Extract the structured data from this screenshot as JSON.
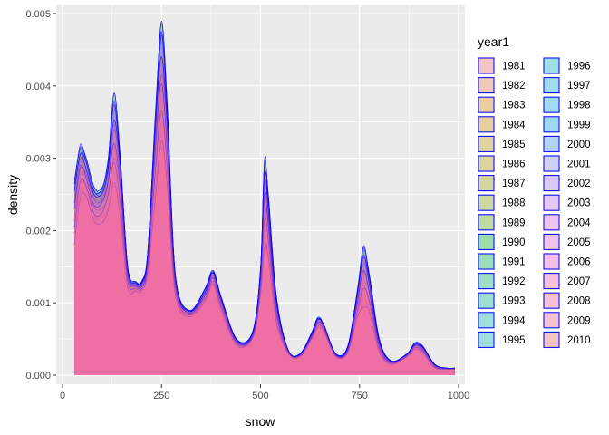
{
  "chart_data": {
    "type": "area",
    "subtype": "overlapping-density",
    "xlabel": "snow",
    "ylabel": "density",
    "xlim": [
      0,
      1000
    ],
    "ylim": [
      0,
      0.005
    ],
    "x_ticks": [
      0,
      250,
      500,
      750,
      1000
    ],
    "x_tick_labels": [
      "0",
      "250",
      "500",
      "750",
      "1000"
    ],
    "y_ticks": [
      0,
      0.001,
      0.002,
      0.003,
      0.004,
      0.005
    ],
    "y_tick_labels": [
      "0.000",
      "0.001",
      "0.002",
      "0.003",
      "0.004",
      "0.005"
    ],
    "grid": true,
    "outline_color": "#0000ff",
    "legend": {
      "title": "year1",
      "placement": "right",
      "columns": 2,
      "entries": [
        "1981",
        "1982",
        "1983",
        "1984",
        "1985",
        "1986",
        "1987",
        "1988",
        "1989",
        "1990",
        "1991",
        "1992",
        "1993",
        "1994",
        "1995",
        "1996",
        "1997",
        "1998",
        "1999",
        "2000",
        "2001",
        "2002",
        "2003",
        "2004",
        "2005",
        "2006",
        "2007",
        "2008",
        "2009",
        "2010"
      ],
      "colors": [
        "#F8766D",
        "#EE8043",
        "#E38900",
        "#D69100",
        "#C59900",
        "#B3A000",
        "#9DA700",
        "#83AD00",
        "#5EB300",
        "#00B81F",
        "#00BB52",
        "#00BE70",
        "#00C08B",
        "#00C1A4",
        "#00BFBC",
        "#00BDD2",
        "#00B8E5",
        "#00B1F3",
        "#00A8FE",
        "#3F9CFF",
        "#8B93FF",
        "#B083FF",
        "#CD79FF",
        "#E36EF6",
        "#F066EA",
        "#FA62D6",
        "#FE61C1",
        "#FF64AA",
        "#FD6A93",
        "#F8766D"
      ]
    },
    "x": [
      30,
      45,
      60,
      80,
      100,
      115,
      130,
      145,
      165,
      185,
      200,
      215,
      235,
      250,
      265,
      285,
      320,
      360,
      380,
      400,
      440,
      480,
      500,
      510,
      520,
      540,
      570,
      600,
      630,
      645,
      660,
      690,
      720,
      745,
      760,
      775,
      800,
      830,
      870,
      890,
      910,
      940,
      970,
      990
    ],
    "envelope_max": [
      0.0027,
      0.0032,
      0.003,
      0.0026,
      0.0026,
      0.003,
      0.0039,
      0.0031,
      0.0015,
      0.0013,
      0.0013,
      0.0017,
      0.0037,
      0.0049,
      0.0037,
      0.0014,
      0.0009,
      0.0012,
      0.00145,
      0.0011,
      0.0005,
      0.0006,
      0.0015,
      0.003,
      0.0025,
      0.0011,
      0.00035,
      0.0003,
      0.0006,
      0.0008,
      0.0007,
      0.0003,
      0.0004,
      0.0012,
      0.0018,
      0.0014,
      0.0005,
      0.0002,
      0.0003,
      0.00045,
      0.0004,
      0.00015,
      0.0001,
      0.0001
    ],
    "envelope_min": [
      0.0018,
      0.0024,
      0.0024,
      0.0021,
      0.0021,
      0.0022,
      0.0025,
      0.0022,
      0.0012,
      0.00115,
      0.00115,
      0.0014,
      0.0024,
      0.003,
      0.0025,
      0.0011,
      0.0008,
      0.001,
      0.00125,
      0.0009,
      0.0004,
      0.0005,
      0.0011,
      0.0017,
      0.0015,
      0.0007,
      0.0003,
      0.00025,
      0.0005,
      0.00065,
      0.0006,
      0.00025,
      0.0003,
      0.0008,
      0.0009,
      0.0008,
      0.0003,
      0.00015,
      0.00025,
      0.00035,
      0.0003,
      0.0001,
      8e-05,
      8e-05
    ]
  }
}
